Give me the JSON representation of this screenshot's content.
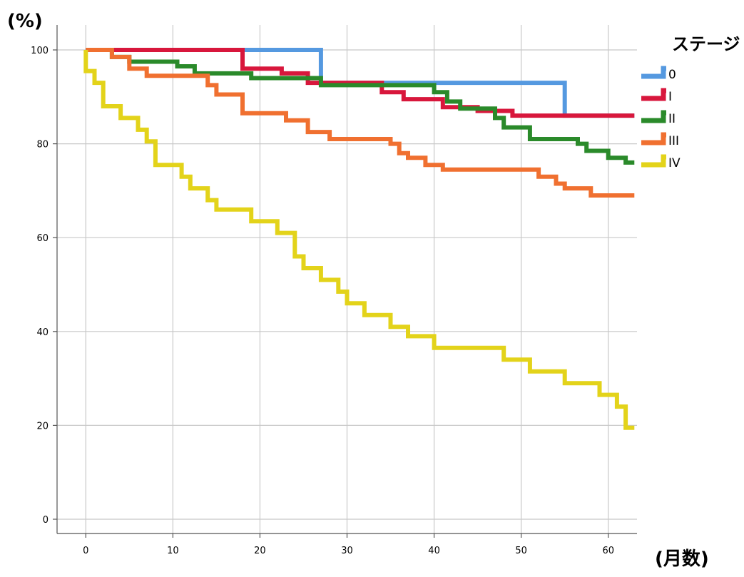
{
  "chart_data": {
    "type": "line",
    "title": "",
    "ylabel": "(%)",
    "xlabel": "(月数)",
    "legend_title": "ステージ",
    "legend_position": "right",
    "grid": true,
    "xlim": [
      -3.3,
      63.3
    ],
    "ylim": [
      -3.0,
      100.0
    ],
    "x_ticks": [
      0,
      10,
      20,
      30,
      40,
      50,
      60
    ],
    "y_ticks": [
      0,
      20,
      40,
      60,
      80,
      100
    ],
    "x_tick_labels": [
      "0",
      "10",
      "20",
      "30",
      "40",
      "50",
      "60"
    ],
    "y_tick_labels": [
      "0",
      "20",
      "40",
      "60",
      "80",
      "100"
    ],
    "series": [
      {
        "name": "0",
        "color": "#5599e0",
        "points": [
          [
            0,
            100
          ],
          [
            27,
            100
          ],
          [
            27,
            93
          ],
          [
            55,
            93
          ],
          [
            55,
            86
          ],
          [
            63,
            86
          ]
        ]
      },
      {
        "name": "I",
        "color": "#d8173c",
        "points": [
          [
            0,
            100
          ],
          [
            18,
            100
          ],
          [
            18,
            96
          ],
          [
            22.5,
            96
          ],
          [
            22.5,
            95
          ],
          [
            25.5,
            95
          ],
          [
            25.5,
            93
          ],
          [
            34,
            93
          ],
          [
            34,
            91
          ],
          [
            36.5,
            91
          ],
          [
            36.5,
            89.5
          ],
          [
            41,
            89.5
          ],
          [
            41,
            87.8
          ],
          [
            45,
            87.8
          ],
          [
            45,
            87
          ],
          [
            49,
            87
          ],
          [
            49,
            86
          ],
          [
            63,
            86
          ]
        ]
      },
      {
        "name": "II",
        "color": "#2a8a2a",
        "points": [
          [
            0,
            100
          ],
          [
            3,
            100
          ],
          [
            3,
            98.5
          ],
          [
            5,
            98.5
          ],
          [
            5,
            97.5
          ],
          [
            10.5,
            97.5
          ],
          [
            10.5,
            96.5
          ],
          [
            12.5,
            96.5
          ],
          [
            12.5,
            95
          ],
          [
            19,
            95
          ],
          [
            19,
            94
          ],
          [
            27,
            94
          ],
          [
            27,
            92.5
          ],
          [
            40,
            92.5
          ],
          [
            40,
            91
          ],
          [
            41.5,
            91
          ],
          [
            41.5,
            89
          ],
          [
            43,
            89
          ],
          [
            43,
            87.5
          ],
          [
            47,
            87.5
          ],
          [
            47,
            85.5
          ],
          [
            48,
            85.5
          ],
          [
            48,
            83.5
          ],
          [
            51,
            83.5
          ],
          [
            51,
            81
          ],
          [
            56.5,
            81
          ],
          [
            56.5,
            80
          ],
          [
            57.5,
            80
          ],
          [
            57.5,
            78.5
          ],
          [
            60,
            78.5
          ],
          [
            60,
            77
          ],
          [
            62,
            77
          ],
          [
            62,
            76
          ],
          [
            63,
            76
          ]
        ]
      },
      {
        "name": "III",
        "color": "#f07030",
        "points": [
          [
            0,
            100
          ],
          [
            3,
            100
          ],
          [
            3,
            98.5
          ],
          [
            5,
            98.5
          ],
          [
            5,
            96
          ],
          [
            7,
            96
          ],
          [
            7,
            94.5
          ],
          [
            14,
            94.5
          ],
          [
            14,
            92.5
          ],
          [
            15,
            92.5
          ],
          [
            15,
            90.5
          ],
          [
            18,
            90.5
          ],
          [
            18,
            86.5
          ],
          [
            23,
            86.5
          ],
          [
            23,
            85
          ],
          [
            25.5,
            85
          ],
          [
            25.5,
            82.5
          ],
          [
            28,
            82.5
          ],
          [
            28,
            81
          ],
          [
            35,
            81
          ],
          [
            35,
            80
          ],
          [
            36,
            80
          ],
          [
            36,
            78
          ],
          [
            37,
            78
          ],
          [
            37,
            77
          ],
          [
            39,
            77
          ],
          [
            39,
            75.5
          ],
          [
            41,
            75.5
          ],
          [
            41,
            74.5
          ],
          [
            52,
            74.5
          ],
          [
            52,
            73
          ],
          [
            54,
            73
          ],
          [
            54,
            71.5
          ],
          [
            55,
            71.5
          ],
          [
            55,
            70.5
          ],
          [
            58,
            70.5
          ],
          [
            58,
            69
          ],
          [
            63,
            69
          ]
        ]
      },
      {
        "name": "IV",
        "color": "#e3d31a",
        "points": [
          [
            0,
            100
          ],
          [
            0,
            95.5
          ],
          [
            1,
            95.5
          ],
          [
            1,
            93
          ],
          [
            2,
            93
          ],
          [
            2,
            88
          ],
          [
            4,
            88
          ],
          [
            4,
            85.5
          ],
          [
            6,
            85.5
          ],
          [
            6,
            83
          ],
          [
            7,
            83
          ],
          [
            7,
            80.5
          ],
          [
            8,
            80.5
          ],
          [
            8,
            75.5
          ],
          [
            11,
            75.5
          ],
          [
            11,
            73
          ],
          [
            12,
            73
          ],
          [
            12,
            70.5
          ],
          [
            14,
            70.5
          ],
          [
            14,
            68
          ],
          [
            15,
            68
          ],
          [
            15,
            66
          ],
          [
            19,
            66
          ],
          [
            19,
            63.5
          ],
          [
            22,
            63.5
          ],
          [
            22,
            61
          ],
          [
            24,
            61
          ],
          [
            24,
            56
          ],
          [
            25,
            56
          ],
          [
            25,
            53.5
          ],
          [
            27,
            53.5
          ],
          [
            27,
            51
          ],
          [
            29,
            51
          ],
          [
            29,
            48.5
          ],
          [
            30,
            48.5
          ],
          [
            30,
            46
          ],
          [
            32,
            46
          ],
          [
            32,
            43.5
          ],
          [
            35,
            43.5
          ],
          [
            35,
            41
          ],
          [
            37,
            41
          ],
          [
            37,
            39
          ],
          [
            40,
            39
          ],
          [
            40,
            36.5
          ],
          [
            48,
            36.5
          ],
          [
            48,
            34
          ],
          [
            51,
            34
          ],
          [
            51,
            31.5
          ],
          [
            55,
            31.5
          ],
          [
            55,
            29
          ],
          [
            59,
            29
          ],
          [
            59,
            26.5
          ],
          [
            61,
            26.5
          ],
          [
            61,
            24
          ],
          [
            62,
            24
          ],
          [
            62,
            19.5
          ],
          [
            63,
            19.5
          ]
        ]
      }
    ]
  }
}
